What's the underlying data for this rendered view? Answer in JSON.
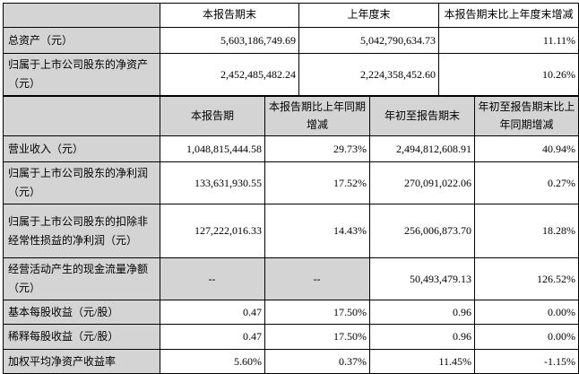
{
  "document": {
    "type": "financial-summary",
    "shading_color": "#d4d4d4",
    "border_color": "#000000"
  },
  "tables": [
    {
      "name": "period-end-balance",
      "header": [
        "",
        "本报告期末",
        "上年度末",
        "本报告期末比上年度末增减"
      ],
      "rows": [
        {
          "label": "总资产（元）",
          "cells": [
            "5,603,186,749.69",
            "5,042,790,634.73",
            "11.11%"
          ]
        },
        {
          "label": "归属于上市公司股东的净资产（元）",
          "cells": [
            "2,452,485,482.24",
            "2,224,358,452.60",
            "10.26%"
          ]
        }
      ]
    },
    {
      "name": "period-performance",
      "header": [
        "",
        "本报告期",
        "本报告期比上年同期增减",
        "年初至报告期末",
        "年初至报告期末比上年同期增减"
      ],
      "rows": [
        {
          "label": "营业收入（元）",
          "cells": [
            "1,048,815,444.58",
            "29.73%",
            "2,494,812,608.91",
            "40.94%"
          ]
        },
        {
          "label": "归属于上市公司股东的净利润（元）",
          "cells": [
            "133,631,930.55",
            "17.52%",
            "270,091,022.06",
            "0.27%"
          ]
        },
        {
          "label": "归属于上市公司股东的扣除非经常性损益的净利润（元）",
          "cells": [
            "127,222,016.33",
            "14.43%",
            "256,006,873.70",
            "18.28%"
          ]
        },
        {
          "label": "经营活动产生的现金流量净额（元）",
          "cells": [
            "--",
            "--",
            "50,493,479.13",
            "126.52%"
          ]
        },
        {
          "label": "基本每股收益（元/股）",
          "cells": [
            "0.47",
            "17.50%",
            "0.96",
            "0.00%"
          ]
        },
        {
          "label": "稀释每股收益（元/股）",
          "cells": [
            "0.47",
            "17.50%",
            "0.96",
            "0.00%"
          ]
        },
        {
          "label": "加权平均净资产收益率",
          "cells": [
            "5.60%",
            "0.37%",
            "11.45%",
            "-1.15%"
          ]
        }
      ]
    }
  ]
}
